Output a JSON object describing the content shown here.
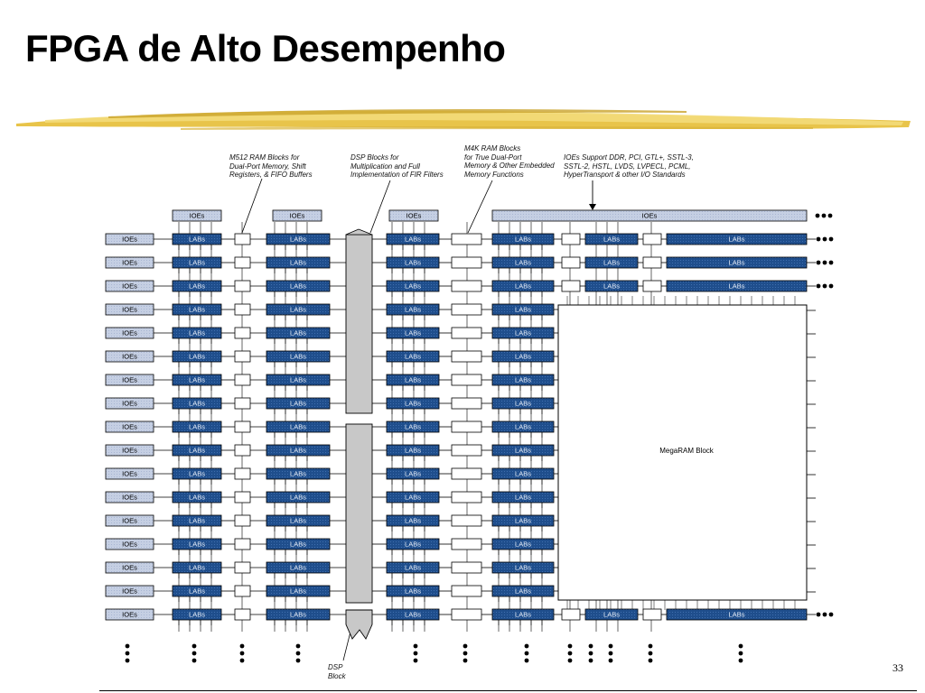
{
  "slide": {
    "title": "FPGA de Alto Desempenho",
    "page_number": "33"
  },
  "diagram": {
    "annotations": {
      "m512": "M512 RAM Blocks for\nDual-Port Memory, Shift\nRegisters, & FIFO Buffers",
      "dsp": "DSP Blocks for\nMultiplication and Full\nImplementation of FIR Filters",
      "m4k": "M4K RAM Blocks\nfor True Dual-Port\nMemory & Other Embedded\nMemory Functions",
      "ioe_standards": "IOEs Support DDR, PCI, GTL+, SSTL-3,\nSSTL-2, HSTL, LVDS, LVPECL, PCML,\nHyperTransport & other I/O Standards",
      "dsp_block": "DSP\nBlock"
    },
    "labels": {
      "ioe": "IOEs",
      "lab": "LABs",
      "megaram": "MegaRAM Block"
    },
    "colors": {
      "lab_fill": "#1f4e8c",
      "ioe_fill": "#c5cfe3",
      "dsp_fill": "#c8c8c8"
    }
  }
}
